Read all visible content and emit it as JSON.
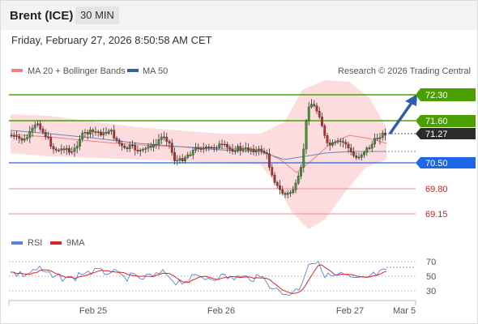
{
  "header": {
    "instrument": "Brent (ICE)",
    "timeframe": "30 MIN"
  },
  "timestamp": "Friday, February 27, 2026 8:50:58 AM CET",
  "legend": {
    "ma20": {
      "label": "MA 20 + Bollinger Bands",
      "color": "#f08080"
    },
    "ma50": {
      "label": "MA 50",
      "color": "#3a5fa0"
    }
  },
  "copyright": "Research © 2026 Trading Central",
  "levels": [
    {
      "label": "72.30",
      "kind": "resistance",
      "style": "badge",
      "color": "#4aa000"
    },
    {
      "label": "71.60",
      "kind": "resistance",
      "style": "badge",
      "color": "#4aa000"
    },
    {
      "label": "71.27",
      "kind": "last",
      "style": "badge",
      "color": "#2b2b2b"
    },
    {
      "label": "70.50",
      "kind": "pivot",
      "style": "badge",
      "color": "#1e66e8"
    },
    {
      "label": "69.80",
      "kind": "support",
      "style": "text",
      "color": "#cc2222"
    },
    {
      "label": "69.15",
      "kind": "support",
      "style": "text",
      "color": "#cc2222"
    }
  ],
  "rsi": {
    "legend_rsi": {
      "label": "RSI",
      "color": "#5b82d6"
    },
    "legend_ma": {
      "label": "9MA",
      "color": "#dd2222"
    },
    "ticks": [
      "70",
      "50",
      "30"
    ]
  },
  "xaxis": {
    "labels": [
      "Feb 25",
      "Feb 26",
      "Feb 27",
      "Mar 5"
    ]
  },
  "chart_data": {
    "type": "candlestick",
    "price_range": [
      68.9,
      72.6
    ],
    "levels": [
      72.3,
      71.6,
      71.27,
      70.5,
      69.8,
      69.15
    ],
    "rsi_range": [
      20,
      80
    ],
    "rsi_ticks": [
      70,
      50,
      30
    ]
  }
}
